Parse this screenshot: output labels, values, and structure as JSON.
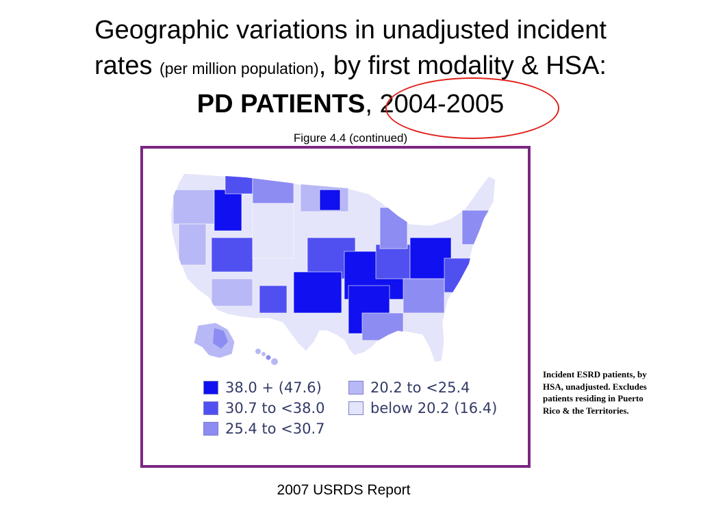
{
  "slide": {
    "title_line1": "Geographic variations in unadjusted incident",
    "title_rates": "rates",
    "title_per_million": "(per million population)",
    "title_comma1": ",",
    "title_rest": "by first modality & HSA:",
    "title_pd": "PD PATIENTS",
    "title_comma2": ",",
    "title_year": "2004-2005",
    "figure_ref": "Figure 4.4 (continued)",
    "note": "Incident ESRD patients, by HSA, unadjusted. Excludes patients residing in Puerto Rico & the Territories.",
    "source": "2007 USRDS Report",
    "circle_color": "#e0201a",
    "frame_color": "#7b2683"
  },
  "legend": {
    "items": [
      {
        "label": "38.0 + (47.6)",
        "color": "#1010f0"
      },
      {
        "label": "30.7 to <38.0",
        "color": "#5050f0"
      },
      {
        "label": "25.4 to <30.7",
        "color": "#8c8cf2"
      },
      {
        "label": "20.2 to <25.4",
        "color": "#b8b8f6"
      },
      {
        "label": "below 20.2 (16.4)",
        "color": "#e4e4fa"
      }
    ]
  }
}
